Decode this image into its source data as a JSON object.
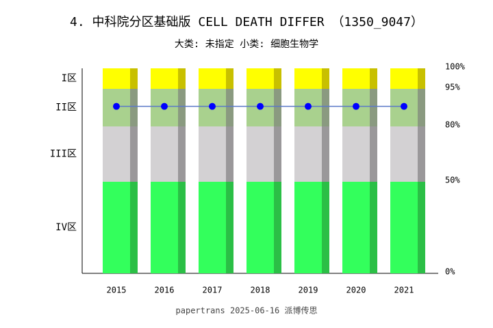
{
  "chart_data": {
    "type": "bar",
    "stacked": true,
    "title": "4. 中科院分区基础版 CELL DEATH DIFFER （1350_9047）",
    "subtitle": "大类: 未指定 小类: 细胞生物学",
    "footer": "papertrans 2025-06-16 派博传思",
    "categories": [
      "2015",
      "2016",
      "2017",
      "2018",
      "2019",
      "2020",
      "2021"
    ],
    "series": [
      {
        "name": "IV区",
        "color": "#33ff5c",
        "side_color": "#2bbf46",
        "values": [
          50,
          50,
          50,
          50,
          50,
          50,
          50
        ]
      },
      {
        "name": "III区",
        "color": "#d3d1d3",
        "side_color": "#9a989a",
        "values": [
          30,
          30,
          30,
          30,
          30,
          30,
          30
        ]
      },
      {
        "name": "II区",
        "color": "#a9d18e",
        "side_color": "#8a9a80",
        "values": [
          15,
          15,
          15,
          15,
          15,
          15,
          15
        ]
      },
      {
        "name": "I区",
        "color": "#ffff00",
        "side_color": "#c8c000",
        "values": [
          5,
          5,
          5,
          5,
          5,
          5,
          5
        ]
      }
    ],
    "line": {
      "color": "#0000ff",
      "values": [
        88,
        88,
        88,
        88,
        88,
        88,
        88
      ]
    },
    "ylim": [
      0,
      100
    ],
    "yticks": [
      {
        "value": 0,
        "label": "0%"
      },
      {
        "value": 50,
        "label": "50%"
      },
      {
        "value": 80,
        "label": "80%"
      },
      {
        "value": 95,
        "label": "95%"
      },
      {
        "value": 100,
        "label": "100%"
      }
    ]
  }
}
